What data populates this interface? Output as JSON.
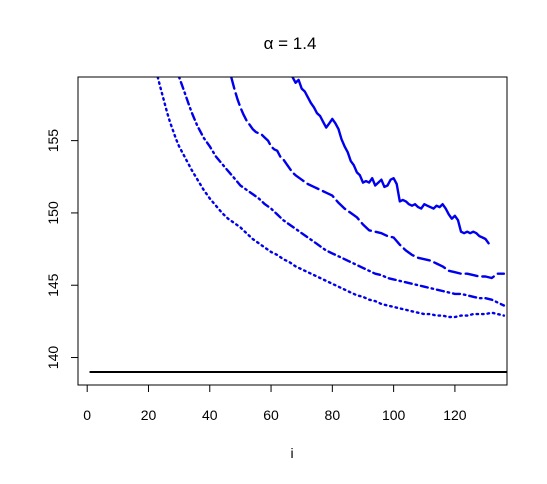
{
  "chart_data": {
    "type": "line",
    "title_symbol": "α",
    "title_rest": " = 1.4",
    "xlabel": "i",
    "ylabel": "",
    "xlim": [
      -3,
      137
    ],
    "ylim": [
      138.1,
      159.4
    ],
    "xticks": [
      0,
      20,
      40,
      60,
      80,
      100,
      120
    ],
    "yticks": [
      140,
      145,
      150,
      155
    ],
    "grid": false,
    "legend": "none",
    "colors": {
      "curves": "#0000ee",
      "baseline": "#000000",
      "axes": "#000000"
    },
    "series": [
      {
        "style": "solid",
        "color": "#0000ee",
        "x": [
          67,
          68,
          69,
          70,
          71,
          72,
          73,
          74,
          75,
          76,
          77,
          78,
          79,
          80,
          81,
          82,
          83,
          84,
          85,
          86,
          87,
          88,
          89,
          90,
          91,
          92,
          93,
          94,
          95,
          96,
          97,
          98,
          99,
          100,
          101,
          102,
          103,
          104,
          105,
          106,
          107,
          108,
          109,
          110,
          111,
          112,
          113,
          114,
          115,
          116,
          117,
          118,
          119,
          120,
          121,
          122,
          123,
          124,
          125,
          126,
          127,
          128,
          129,
          130,
          131
        ],
        "y": [
          159.4,
          159.0,
          159.2,
          158.6,
          158.4,
          158.0,
          157.6,
          157.3,
          156.9,
          156.7,
          156.3,
          155.9,
          156.2,
          156.5,
          156.2,
          155.8,
          155.1,
          154.6,
          154.2,
          153.6,
          153.3,
          152.8,
          152.6,
          152.1,
          152.2,
          152.1,
          152.4,
          151.9,
          152.1,
          152.3,
          151.8,
          151.9,
          152.3,
          152.4,
          152.0,
          150.8,
          150.9,
          150.8,
          150.6,
          150.5,
          150.6,
          150.4,
          150.3,
          150.6,
          150.5,
          150.4,
          150.3,
          150.5,
          150.4,
          150.6,
          150.3,
          149.9,
          149.6,
          149.8,
          149.5,
          148.7,
          148.6,
          148.7,
          148.6,
          148.7,
          148.6,
          148.4,
          148.3,
          148.2,
          147.9
        ]
      },
      {
        "style": "longdash",
        "color": "#0000ee",
        "x": [
          47,
          48,
          49,
          50,
          51,
          52,
          53,
          54,
          55,
          56,
          57,
          58,
          59,
          60,
          61,
          62,
          63,
          64,
          65,
          66,
          67,
          68,
          70,
          72,
          74,
          76,
          78,
          80,
          82,
          84,
          86,
          88,
          90,
          92,
          94,
          96,
          98,
          100,
          102,
          104,
          106,
          108,
          110,
          112,
          114,
          116,
          118,
          120,
          122,
          124,
          126,
          128,
          130,
          132,
          134,
          136
        ],
        "y": [
          159.4,
          158.6,
          157.9,
          157.3,
          156.8,
          156.4,
          156.1,
          155.8,
          155.6,
          155.5,
          155.4,
          155.2,
          155.0,
          154.6,
          154.4,
          154.3,
          153.9,
          153.7,
          153.4,
          153.1,
          152.8,
          152.6,
          152.3,
          152.0,
          151.8,
          151.6,
          151.4,
          151.2,
          150.7,
          150.3,
          150.0,
          149.7,
          149.2,
          148.8,
          148.7,
          148.6,
          148.4,
          148.3,
          147.8,
          147.4,
          147.1,
          146.9,
          146.8,
          146.7,
          146.5,
          146.3,
          146.0,
          145.9,
          145.8,
          145.8,
          145.7,
          145.6,
          145.6,
          145.5,
          145.8,
          145.8
        ]
      },
      {
        "style": "dotdash",
        "color": "#0000ee",
        "x": [
          30,
          31,
          32,
          33,
          34,
          35,
          36,
          37,
          38,
          40,
          42,
          44,
          46,
          48,
          50,
          52,
          54,
          56,
          58,
          60,
          62,
          64,
          66,
          68,
          70,
          72,
          74,
          76,
          78,
          80,
          82,
          84,
          86,
          88,
          90,
          92,
          94,
          96,
          98,
          100,
          102,
          104,
          106,
          108,
          110,
          112,
          114,
          116,
          118,
          120,
          122,
          124,
          126,
          128,
          130,
          132,
          134,
          136
        ],
        "y": [
          159.4,
          158.8,
          158.2,
          157.6,
          157.0,
          156.5,
          156.0,
          155.6,
          155.2,
          154.6,
          153.9,
          153.4,
          152.9,
          152.4,
          151.9,
          151.6,
          151.3,
          151.0,
          150.6,
          150.3,
          149.9,
          149.5,
          149.2,
          148.9,
          148.6,
          148.3,
          148.0,
          147.7,
          147.4,
          147.2,
          147.0,
          146.8,
          146.6,
          146.4,
          146.2,
          146.0,
          145.8,
          145.7,
          145.5,
          145.4,
          145.3,
          145.2,
          145.1,
          145.0,
          144.9,
          144.8,
          144.7,
          144.6,
          144.5,
          144.4,
          144.4,
          144.3,
          144.2,
          144.1,
          144.1,
          144.0,
          143.8,
          143.6
        ]
      },
      {
        "style": "dotted",
        "color": "#0000ee",
        "x": [
          23,
          24,
          25,
          26,
          27,
          28,
          29,
          30,
          31,
          32,
          34,
          36,
          38,
          40,
          42,
          44,
          46,
          48,
          50,
          52,
          54,
          56,
          58,
          60,
          62,
          64,
          66,
          68,
          70,
          72,
          74,
          76,
          78,
          80,
          82,
          84,
          86,
          88,
          90,
          92,
          94,
          96,
          98,
          100,
          102,
          104,
          106,
          108,
          110,
          112,
          114,
          116,
          118,
          120,
          122,
          124,
          126,
          128,
          130,
          132,
          134,
          136
        ],
        "y": [
          159.4,
          158.6,
          157.8,
          157.0,
          156.3,
          155.7,
          155.1,
          154.6,
          154.2,
          153.8,
          153.0,
          152.3,
          151.6,
          151.0,
          150.5,
          150.0,
          149.6,
          149.3,
          149.0,
          148.6,
          148.2,
          147.9,
          147.6,
          147.3,
          147.1,
          146.8,
          146.6,
          146.3,
          146.1,
          145.9,
          145.7,
          145.5,
          145.3,
          145.1,
          144.9,
          144.7,
          144.5,
          144.3,
          144.2,
          144.0,
          143.9,
          143.7,
          143.6,
          143.5,
          143.4,
          143.3,
          143.2,
          143.1,
          143.0,
          143.0,
          142.9,
          142.9,
          142.8,
          142.8,
          142.9,
          142.9,
          143.0,
          143.0,
          143.0,
          143.1,
          143.0,
          142.9
        ]
      },
      {
        "style": "solid",
        "color": "#000000",
        "x": [
          1,
          137
        ],
        "y": [
          139,
          139
        ]
      }
    ]
  }
}
